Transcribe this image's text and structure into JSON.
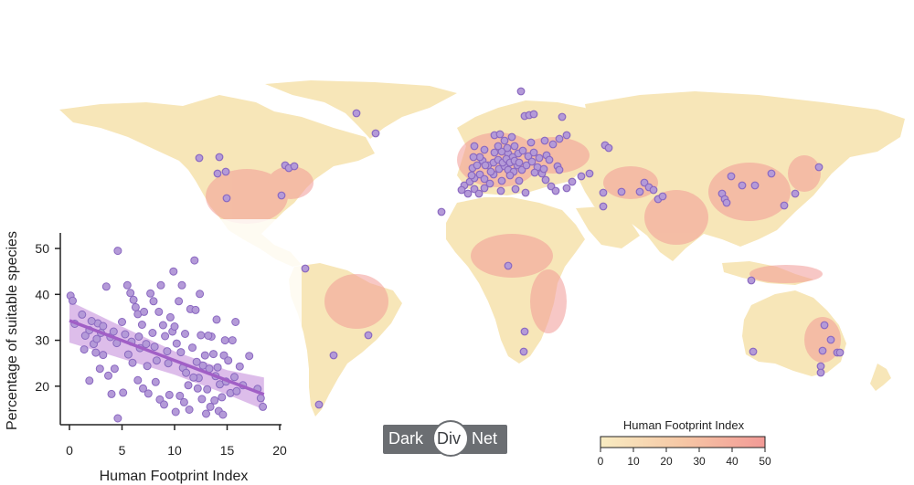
{
  "brand": {
    "logo_left": "Dark",
    "logo_mid": "Div",
    "logo_right": "Net"
  },
  "colors": {
    "land_low": "#f7e6b8",
    "land_high": "#f29a96",
    "site_fill": "#b49ad8",
    "site_stroke": "#8a68c0",
    "trend_line": "#a15fc6",
    "ci_band": "#d2a7e3"
  },
  "chart_data": [
    {
      "type": "scatter",
      "xlabel": "Human Footprint Index",
      "ylabel": "Percentage of suitable species",
      "xlim": [
        0,
        20
      ],
      "ylim": [
        13,
        52
      ],
      "x_ticks": [
        0,
        5,
        10,
        15,
        20
      ],
      "y_ticks": [
        20,
        30,
        40,
        50
      ],
      "legend": "none",
      "grid": false,
      "trend": {
        "x0": 0,
        "y0": 34.3,
        "x1": 18.5,
        "y1": 18.2
      },
      "ci_band": {
        "lower": [
          [
            0,
            29.5
          ],
          [
            5,
            26.0
          ],
          [
            10,
            22.5
          ],
          [
            15,
            18.2
          ],
          [
            18.5,
            14.9
          ]
        ],
        "upper": [
          [
            0,
            38.5
          ],
          [
            5,
            33.0
          ],
          [
            10,
            27.6
          ],
          [
            15,
            23.5
          ],
          [
            18.5,
            21.9
          ]
        ]
      },
      "points": [
        [
          0.1,
          39.7
        ],
        [
          0.3,
          38.6
        ],
        [
          0.5,
          33.6
        ],
        [
          1.2,
          35.6
        ],
        [
          1.4,
          28.0
        ],
        [
          1.5,
          31.0
        ],
        [
          1.9,
          32.2
        ],
        [
          2.3,
          29.2
        ],
        [
          2.6,
          30.3
        ],
        [
          2.7,
          33.7
        ],
        [
          2.5,
          27.3
        ],
        [
          2.9,
          23.8
        ],
        [
          3.2,
          33.1
        ],
        [
          3.5,
          41.7
        ],
        [
          3.2,
          26.8
        ],
        [
          3.9,
          30.7
        ],
        [
          4.3,
          23.8
        ],
        [
          4.5,
          29.4
        ],
        [
          4.6,
          49.5
        ],
        [
          5.0,
          34.0
        ],
        [
          5.3,
          31.3
        ],
        [
          5.5,
          42.0
        ],
        [
          5.9,
          29.7
        ],
        [
          6.1,
          38.8
        ],
        [
          6.3,
          37.2
        ],
        [
          6.5,
          35.7
        ],
        [
          6.7,
          28.3
        ],
        [
          6.9,
          33.4
        ],
        [
          7.1,
          36.2
        ],
        [
          7.3,
          29.2
        ],
        [
          7.4,
          24.4
        ],
        [
          7.7,
          40.2
        ],
        [
          7.9,
          31.6
        ],
        [
          8.1,
          28.6
        ],
        [
          8.3,
          25.6
        ],
        [
          8.5,
          36.2
        ],
        [
          8.7,
          42.0
        ],
        [
          8.9,
          33.3
        ],
        [
          9.1,
          30.9
        ],
        [
          9.3,
          27.6
        ],
        [
          9.4,
          25.0
        ],
        [
          9.6,
          35.0
        ],
        [
          9.8,
          31.9
        ],
        [
          10.0,
          33.0
        ],
        [
          10.2,
          29.3
        ],
        [
          10.4,
          38.5
        ],
        [
          10.6,
          27.4
        ],
        [
          10.8,
          24.0
        ],
        [
          11.0,
          31.4
        ],
        [
          11.1,
          22.9
        ],
        [
          11.3,
          20.2
        ],
        [
          11.5,
          36.8
        ],
        [
          11.7,
          28.4
        ],
        [
          11.9,
          47.4
        ],
        [
          12.1,
          25.3
        ],
        [
          12.3,
          21.8
        ],
        [
          12.5,
          31.1
        ],
        [
          12.7,
          24.5
        ],
        [
          12.9,
          26.7
        ],
        [
          13.1,
          19.3
        ],
        [
          13.3,
          23.8
        ],
        [
          13.5,
          30.8
        ],
        [
          13.7,
          27.0
        ],
        [
          13.9,
          22.2
        ],
        [
          14.1,
          24.1
        ],
        [
          14.3,
          20.4
        ],
        [
          14.5,
          17.6
        ],
        [
          14.7,
          26.7
        ],
        [
          14.9,
          21.0
        ],
        [
          15.1,
          25.6
        ],
        [
          15.3,
          18.5
        ],
        [
          15.5,
          30.0
        ],
        [
          15.7,
          22.0
        ],
        [
          15.9,
          18.9
        ],
        [
          16.2,
          24.3
        ],
        [
          16.5,
          20.2
        ],
        [
          17.1,
          26.6
        ],
        [
          17.9,
          19.4
        ],
        [
          18.2,
          17.4
        ],
        [
          18.4,
          15.5
        ],
        [
          6.0,
          25.1
        ],
        [
          6.5,
          21.3
        ],
        [
          7.0,
          19.5
        ],
        [
          7.5,
          18.4
        ],
        [
          8.2,
          20.9
        ],
        [
          8.6,
          17.1
        ],
        [
          9.0,
          16.0
        ],
        [
          9.5,
          18.1
        ],
        [
          10.1,
          14.4
        ],
        [
          10.5,
          17.9
        ],
        [
          10.9,
          16.5
        ],
        [
          11.4,
          14.9
        ],
        [
          11.8,
          21.9
        ],
        [
          12.2,
          19.5
        ],
        [
          12.6,
          17.2
        ],
        [
          13.0,
          14.0
        ],
        [
          13.4,
          15.5
        ],
        [
          13.8,
          16.9
        ],
        [
          14.2,
          14.6
        ],
        [
          14.6,
          13.8
        ],
        [
          4.6,
          13.0
        ],
        [
          5.1,
          18.6
        ],
        [
          4.0,
          18.3
        ],
        [
          3.7,
          22.3
        ],
        [
          1.9,
          21.2
        ],
        [
          2.1,
          34.2
        ],
        [
          4.2,
          31.9
        ],
        [
          3.0,
          31.6
        ],
        [
          5.6,
          26.9
        ],
        [
          5.8,
          40.3
        ],
        [
          6.6,
          30.8
        ],
        [
          8.0,
          38.5
        ],
        [
          9.9,
          45.0
        ],
        [
          10.7,
          42.0
        ],
        [
          12.0,
          36.6
        ],
        [
          12.4,
          40.1
        ],
        [
          13.2,
          31.0
        ],
        [
          14.0,
          34.5
        ],
        [
          14.8,
          30.0
        ],
        [
          15.8,
          34.0
        ]
      ]
    },
    {
      "type": "heatmap",
      "title": "Human Footprint Index",
      "colorbar_ticks": [
        0,
        10,
        20,
        30,
        40,
        50
      ],
      "colorbar_range": [
        0,
        50
      ],
      "site_count": 142
    }
  ]
}
